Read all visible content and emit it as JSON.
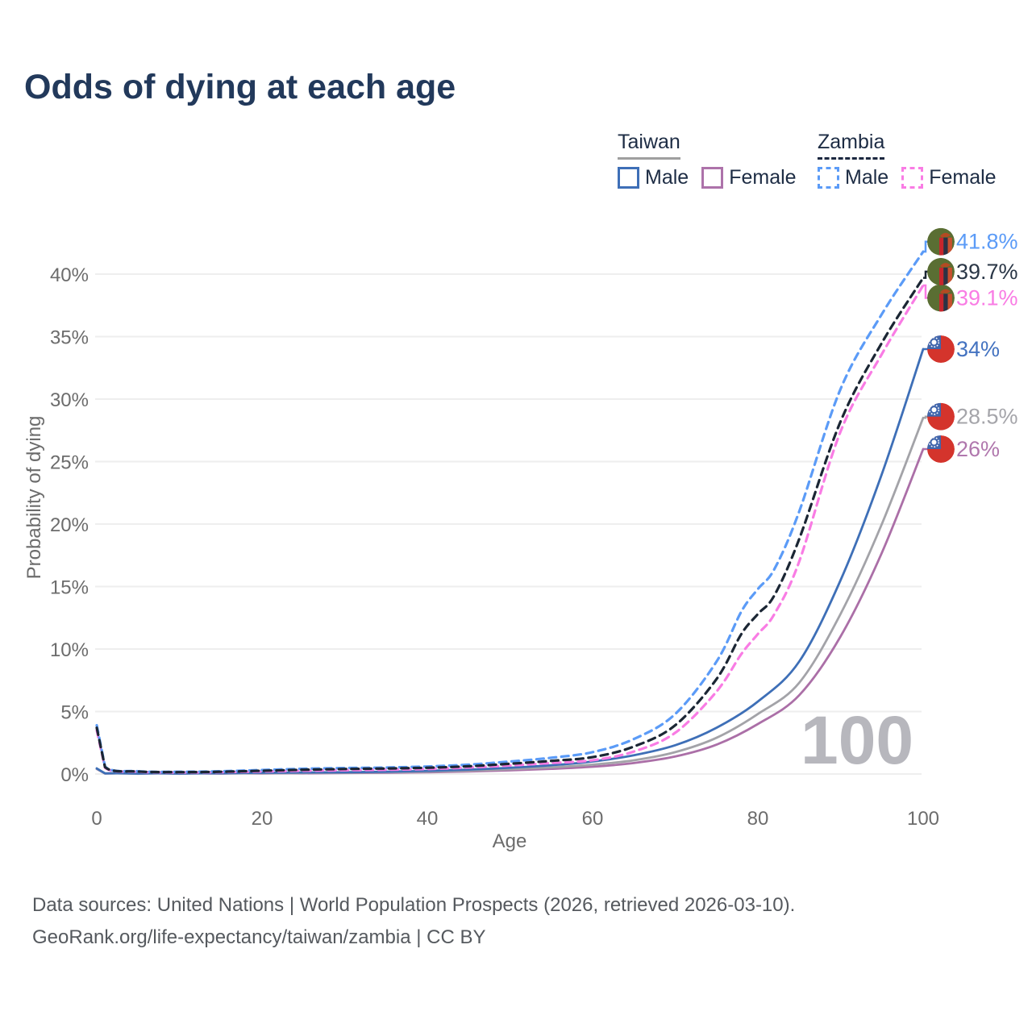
{
  "title": "Odds of dying at each age",
  "legend": {
    "groups": [
      {
        "label": "Taiwan",
        "underline_style": "solid",
        "underline_color": "#9f9f9f",
        "items": [
          {
            "label": "Male",
            "color": "#3e6fb7",
            "dashed": false
          },
          {
            "label": "Female",
            "color": "#ad72aa",
            "dashed": false
          }
        ]
      },
      {
        "label": "Zambia",
        "underline_style": "dashed",
        "underline_color": "#1c2840",
        "items": [
          {
            "label": "Male",
            "color": "#5b9bf7",
            "dashed": true
          },
          {
            "label": "Female",
            "color": "#f97ce4",
            "dashed": true
          }
        ]
      }
    ]
  },
  "chart_data": {
    "type": "line",
    "title": "Odds of dying at each age",
    "xlabel": "Age",
    "ylabel": "Probability of dying",
    "xlim": [
      0,
      100
    ],
    "ylim_pct": [
      0,
      42.6
    ],
    "x_ticks": [
      0,
      20,
      40,
      60,
      80,
      100
    ],
    "y_ticks_pct": [
      0,
      5,
      10,
      15,
      20,
      25,
      30,
      35,
      40
    ],
    "grid": "horizontal-only",
    "age_cursor_label": "100",
    "series": [
      {
        "id": "taiwan-female",
        "name": "Taiwan Female",
        "country": "Taiwan",
        "sex": "female",
        "style": "solid",
        "color": "#ab6fa7",
        "end_label": {
          "text": "26%",
          "color": "#b077ad",
          "flag": "taiwan",
          "label_pct": 26.0
        },
        "points": [
          [
            0,
            0.4
          ],
          [
            1,
            0.04
          ],
          [
            5,
            0.02
          ],
          [
            10,
            0.02
          ],
          [
            15,
            0.03
          ],
          [
            20,
            0.045
          ],
          [
            25,
            0.06
          ],
          [
            30,
            0.08
          ],
          [
            35,
            0.1
          ],
          [
            40,
            0.14
          ],
          [
            45,
            0.2
          ],
          [
            50,
            0.29
          ],
          [
            55,
            0.41
          ],
          [
            60,
            0.58
          ],
          [
            65,
            0.88
          ],
          [
            70,
            1.4
          ],
          [
            75,
            2.35
          ],
          [
            80,
            4.0
          ],
          [
            85,
            6.3
          ],
          [
            90,
            11.0
          ],
          [
            95,
            17.7
          ],
          [
            100,
            26.0
          ]
        ]
      },
      {
        "id": "taiwan-combined",
        "name": "Taiwan Both Sexes",
        "country": "Taiwan",
        "sex": "combined",
        "style": "solid",
        "color": "#a3a3a8",
        "end_label": {
          "text": "28.5%",
          "color": "#a5a5aa",
          "flag": "taiwan",
          "label_pct": 28.6
        },
        "points": [
          [
            0,
            0.42
          ],
          [
            1,
            0.045
          ],
          [
            5,
            0.025
          ],
          [
            10,
            0.025
          ],
          [
            15,
            0.05
          ],
          [
            20,
            0.07
          ],
          [
            25,
            0.09
          ],
          [
            30,
            0.11
          ],
          [
            35,
            0.14
          ],
          [
            40,
            0.19
          ],
          [
            45,
            0.27
          ],
          [
            50,
            0.38
          ],
          [
            55,
            0.53
          ],
          [
            60,
            0.75
          ],
          [
            65,
            1.1
          ],
          [
            70,
            1.75
          ],
          [
            75,
            2.9
          ],
          [
            80,
            4.8
          ],
          [
            85,
            7.3
          ],
          [
            90,
            12.8
          ],
          [
            95,
            20.0
          ],
          [
            100,
            28.5
          ]
        ]
      },
      {
        "id": "taiwan-male",
        "name": "Taiwan Male",
        "country": "Taiwan",
        "sex": "male",
        "style": "solid",
        "color": "#3e6fb7",
        "end_label": {
          "text": "34%",
          "color": "#4372c0",
          "flag": "taiwan",
          "label_pct": 34.0
        },
        "points": [
          [
            0,
            0.45
          ],
          [
            1,
            0.05
          ],
          [
            5,
            0.03
          ],
          [
            10,
            0.03
          ],
          [
            15,
            0.06
          ],
          [
            20,
            0.1
          ],
          [
            25,
            0.12
          ],
          [
            30,
            0.14
          ],
          [
            35,
            0.18
          ],
          [
            40,
            0.25
          ],
          [
            45,
            0.35
          ],
          [
            50,
            0.5
          ],
          [
            55,
            0.7
          ],
          [
            60,
            1.0
          ],
          [
            65,
            1.5
          ],
          [
            70,
            2.3
          ],
          [
            75,
            3.7
          ],
          [
            80,
            5.8
          ],
          [
            85,
            9.0
          ],
          [
            90,
            15.5
          ],
          [
            95,
            24.0
          ],
          [
            100,
            34.0
          ]
        ]
      },
      {
        "id": "zambia-female",
        "name": "Zambia Female",
        "country": "Zambia",
        "sex": "female",
        "style": "dashed",
        "color": "#f97ce4",
        "end_label": {
          "text": "39.1%",
          "color": "#f97ce4",
          "flag": "zambia",
          "label_pct": 38.1
        },
        "points": [
          [
            0,
            3.5
          ],
          [
            1,
            0.5
          ],
          [
            5,
            0.18
          ],
          [
            10,
            0.13
          ],
          [
            15,
            0.15
          ],
          [
            20,
            0.2
          ],
          [
            25,
            0.26
          ],
          [
            30,
            0.3
          ],
          [
            35,
            0.34
          ],
          [
            40,
            0.4
          ],
          [
            45,
            0.52
          ],
          [
            50,
            0.68
          ],
          [
            55,
            0.88
          ],
          [
            60,
            1.1
          ],
          [
            65,
            1.8
          ],
          [
            70,
            3.3
          ],
          [
            75,
            6.6
          ],
          [
            78,
            9.6
          ],
          [
            80,
            11.2
          ],
          [
            82,
            12.8
          ],
          [
            85,
            17.0
          ],
          [
            90,
            27.4
          ],
          [
            95,
            33.6
          ],
          [
            100,
            39.1
          ]
        ]
      },
      {
        "id": "zambia-male",
        "name": "Zambia Male",
        "country": "Zambia",
        "sex": "male",
        "style": "dashed",
        "color": "#5b9bf7",
        "end_label": {
          "text": "41.8%",
          "color": "#5b9bf7",
          "flag": "zambia",
          "label_pct": 42.6
        },
        "points": [
          [
            0,
            3.9
          ],
          [
            1,
            0.6
          ],
          [
            5,
            0.22
          ],
          [
            10,
            0.18
          ],
          [
            15,
            0.22
          ],
          [
            20,
            0.32
          ],
          [
            25,
            0.42
          ],
          [
            30,
            0.48
          ],
          [
            35,
            0.52
          ],
          [
            40,
            0.6
          ],
          [
            45,
            0.75
          ],
          [
            50,
            1.0
          ],
          [
            55,
            1.3
          ],
          [
            60,
            1.75
          ],
          [
            65,
            2.8
          ],
          [
            70,
            4.8
          ],
          [
            75,
            9.0
          ],
          [
            78,
            13.0
          ],
          [
            80,
            14.8
          ],
          [
            82,
            16.4
          ],
          [
            85,
            21.0
          ],
          [
            90,
            30.8
          ],
          [
            95,
            36.8
          ],
          [
            100,
            41.8
          ]
        ]
      },
      {
        "id": "zambia-combined",
        "name": "Zambia Both Sexes",
        "country": "Zambia",
        "sex": "combined",
        "style": "dashed",
        "color": "#1b2634",
        "end_label": {
          "text": "39.7%",
          "color": "#2a3646",
          "flag": "zambia",
          "label_pct": 40.2
        },
        "points": [
          [
            0,
            3.7
          ],
          [
            1,
            0.55
          ],
          [
            5,
            0.2
          ],
          [
            10,
            0.15
          ],
          [
            15,
            0.18
          ],
          [
            20,
            0.26
          ],
          [
            25,
            0.34
          ],
          [
            30,
            0.4
          ],
          [
            35,
            0.44
          ],
          [
            40,
            0.5
          ],
          [
            45,
            0.62
          ],
          [
            50,
            0.82
          ],
          [
            55,
            1.05
          ],
          [
            60,
            1.35
          ],
          [
            65,
            2.2
          ],
          [
            70,
            3.9
          ],
          [
            75,
            7.6
          ],
          [
            78,
            11.2
          ],
          [
            80,
            12.8
          ],
          [
            82,
            14.3
          ],
          [
            85,
            18.8
          ],
          [
            90,
            28.2
          ],
          [
            95,
            34.5
          ],
          [
            100,
            39.7
          ]
        ]
      }
    ],
    "flag_colors": {
      "taiwan": {
        "field": "#d4342c",
        "canton": "#4166ac",
        "sun": "#ffffff"
      },
      "zambia": {
        "field": "#5a6e33",
        "stripe1": "#c6262c",
        "stripe2": "#2c3245",
        "stripe3": "#c8502e",
        "eagle": "#b44a22"
      }
    }
  },
  "watermark": "100",
  "footer": {
    "line1": "Data sources: United Nations | World Population Prospects (2026, retrieved 2026-03-10).",
    "line2": "GeoRank.org/life-expectancy/taiwan/zambia | CC BY"
  }
}
